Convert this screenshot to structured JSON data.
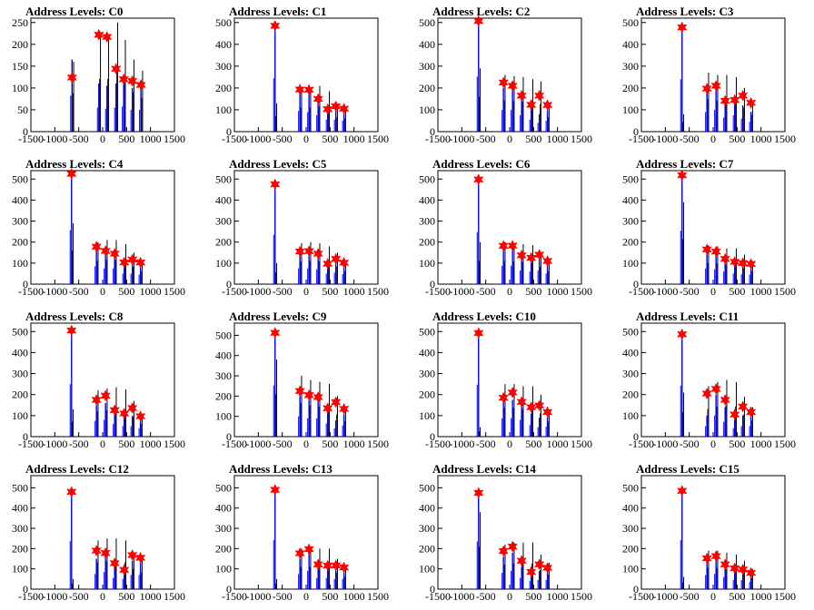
{
  "chart_data": [
    {
      "type": "line",
      "title": "Address Levels: C0",
      "xlim": [
        -1500,
        1500
      ],
      "ylim": [
        0,
        260
      ],
      "xticks": [
        "-1500",
        "-1000",
        "-500",
        "0",
        "500",
        "1000",
        "1500"
      ],
      "yticks": [
        "0",
        "50",
        "100",
        "150",
        "200",
        "250"
      ],
      "peaks": [
        {
          "x": -640,
          "black": 160,
          "blue": 165,
          "marker": 124
        },
        {
          "x": -80,
          "black": 220,
          "blue": 110,
          "marker": 222
        },
        {
          "x": 90,
          "black": 220,
          "blue": 105,
          "marker": 217
        },
        {
          "x": 280,
          "black": 250,
          "blue": 110,
          "marker": 144
        },
        {
          "x": 440,
          "black": 210,
          "blue": 115,
          "marker": 120
        },
        {
          "x": 620,
          "black": 165,
          "blue": 100,
          "marker": 116
        },
        {
          "x": 800,
          "black": 140,
          "blue": 100,
          "marker": 107
        }
      ]
    },
    {
      "type": "line",
      "title": "Address Levels: C1",
      "xlim": [
        -1500,
        1500
      ],
      "ylim": [
        0,
        520
      ],
      "xticks": [
        "-1500",
        "-1000",
        "-500",
        "0",
        "500",
        "1000",
        "1500"
      ],
      "yticks": [
        "0",
        "100",
        "200",
        "300",
        "400",
        "500"
      ],
      "peaks": [
        {
          "x": -650,
          "black": 130,
          "blue": 490,
          "marker": 485
        },
        {
          "x": -130,
          "black": 200,
          "blue": 190,
          "marker": 193
        },
        {
          "x": 60,
          "black": 200,
          "blue": 180,
          "marker": 192
        },
        {
          "x": 250,
          "black": 210,
          "blue": 150,
          "marker": 150
        },
        {
          "x": 450,
          "black": 185,
          "blue": 110,
          "marker": 103
        },
        {
          "x": 620,
          "black": 120,
          "blue": 110,
          "marker": 116
        },
        {
          "x": 790,
          "black": 110,
          "blue": 100,
          "marker": 105
        }
      ]
    },
    {
      "type": "line",
      "title": "Address Levels: C2",
      "xlim": [
        -1500,
        1500
      ],
      "ylim": [
        0,
        520
      ],
      "xticks": [
        "-1500",
        "-1000",
        "-500",
        "0",
        "500",
        "1000",
        "1500"
      ],
      "yticks": [
        "0",
        "100",
        "200",
        "300",
        "400",
        "500"
      ],
      "peaks": [
        {
          "x": -650,
          "black": 290,
          "blue": 505,
          "marker": 507
        },
        {
          "x": -130,
          "black": 260,
          "blue": 200,
          "marker": 225
        },
        {
          "x": 60,
          "black": 255,
          "blue": 200,
          "marker": 210
        },
        {
          "x": 250,
          "black": 250,
          "blue": 150,
          "marker": 165
        },
        {
          "x": 450,
          "black": 240,
          "blue": 110,
          "marker": 123
        },
        {
          "x": 620,
          "black": 230,
          "blue": 80,
          "marker": 165
        },
        {
          "x": 790,
          "black": 120,
          "blue": 100,
          "marker": 122
        }
      ]
    },
    {
      "type": "line",
      "title": "Address Levels: C3",
      "xlim": [
        -1500,
        1500
      ],
      "ylim": [
        0,
        520
      ],
      "xticks": [
        "-1500",
        "-1000",
        "-500",
        "0",
        "500",
        "1000",
        "1500"
      ],
      "yticks": [
        "0",
        "100",
        "200",
        "300",
        "400",
        "500"
      ],
      "peaks": [
        {
          "x": -650,
          "black": 80,
          "blue": 480,
          "marker": 478
        },
        {
          "x": -130,
          "black": 270,
          "blue": 180,
          "marker": 197
        },
        {
          "x": 60,
          "black": 260,
          "blue": 200,
          "marker": 210
        },
        {
          "x": 250,
          "black": 260,
          "blue": 130,
          "marker": 141
        },
        {
          "x": 450,
          "black": 250,
          "blue": 150,
          "marker": 145
        },
        {
          "x": 620,
          "black": 200,
          "blue": 120,
          "marker": 165
        },
        {
          "x": 790,
          "black": 140,
          "blue": 90,
          "marker": 132
        }
      ]
    },
    {
      "type": "line",
      "title": "Address Levels: C4",
      "xlim": [
        -1500,
        1500
      ],
      "ylim": [
        0,
        540
      ],
      "xticks": [
        "-1500",
        "-1000",
        "-500",
        "0",
        "500",
        "1000",
        "1500"
      ],
      "yticks": [
        "0",
        "100",
        "200",
        "300",
        "400",
        "500"
      ],
      "peaks": [
        {
          "x": -650,
          "black": 290,
          "blue": 515,
          "marker": 525
        },
        {
          "x": -130,
          "black": 200,
          "blue": 170,
          "marker": 178
        },
        {
          "x": 60,
          "black": 210,
          "blue": 150,
          "marker": 158
        },
        {
          "x": 250,
          "black": 210,
          "blue": 150,
          "marker": 145
        },
        {
          "x": 450,
          "black": 190,
          "blue": 100,
          "marker": 103
        },
        {
          "x": 620,
          "black": 150,
          "blue": 100,
          "marker": 117
        },
        {
          "x": 790,
          "black": 110,
          "blue": 90,
          "marker": 103
        }
      ]
    },
    {
      "type": "line",
      "title": "Address Levels: C5",
      "xlim": [
        -1500,
        1500
      ],
      "ylim": [
        0,
        540
      ],
      "xticks": [
        "-1500",
        "-1000",
        "-500",
        "0",
        "500",
        "1000",
        "1500"
      ],
      "yticks": [
        "0",
        "100",
        "200",
        "300",
        "400",
        "500"
      ],
      "peaks": [
        {
          "x": -650,
          "black": 100,
          "blue": 470,
          "marker": 475
        },
        {
          "x": -130,
          "black": 195,
          "blue": 150,
          "marker": 155
        },
        {
          "x": 60,
          "black": 200,
          "blue": 150,
          "marker": 157
        },
        {
          "x": 250,
          "black": 195,
          "blue": 140,
          "marker": 145
        },
        {
          "x": 450,
          "black": 180,
          "blue": 100,
          "marker": 97
        },
        {
          "x": 620,
          "black": 150,
          "blue": 110,
          "marker": 120
        },
        {
          "x": 790,
          "black": 110,
          "blue": 95,
          "marker": 102
        }
      ]
    },
    {
      "type": "line",
      "title": "Address Levels: C6",
      "xlim": [
        -1500,
        1500
      ],
      "ylim": [
        0,
        540
      ],
      "xticks": [
        "-1500",
        "-1000",
        "-500",
        "0",
        "500",
        "1000",
        "1500"
      ],
      "yticks": [
        "0",
        "100",
        "200",
        "300",
        "400",
        "500"
      ],
      "peaks": [
        {
          "x": -650,
          "black": 200,
          "blue": 495,
          "marker": 498
        },
        {
          "x": -130,
          "black": 200,
          "blue": 175,
          "marker": 182
        },
        {
          "x": 60,
          "black": 195,
          "blue": 175,
          "marker": 183
        },
        {
          "x": 250,
          "black": 190,
          "blue": 130,
          "marker": 137
        },
        {
          "x": 450,
          "black": 185,
          "blue": 120,
          "marker": 125
        },
        {
          "x": 620,
          "black": 150,
          "blue": 130,
          "marker": 140
        },
        {
          "x": 790,
          "black": 110,
          "blue": 100,
          "marker": 110
        }
      ]
    },
    {
      "type": "line",
      "title": "Address Levels: C7",
      "xlim": [
        -1500,
        1500
      ],
      "ylim": [
        0,
        540
      ],
      "xticks": [
        "-1500",
        "-1000",
        "-500",
        "0",
        "500",
        "1000",
        "1500"
      ],
      "yticks": [
        "0",
        "100",
        "200",
        "300",
        "400",
        "500"
      ],
      "peaks": [
        {
          "x": -650,
          "black": 390,
          "blue": 510,
          "marker": 518
        },
        {
          "x": -130,
          "black": 185,
          "blue": 150,
          "marker": 165
        },
        {
          "x": 60,
          "black": 180,
          "blue": 140,
          "marker": 155
        },
        {
          "x": 250,
          "black": 170,
          "blue": 120,
          "marker": 120
        },
        {
          "x": 450,
          "black": 170,
          "blue": 100,
          "marker": 106
        },
        {
          "x": 620,
          "black": 140,
          "blue": 95,
          "marker": 100
        },
        {
          "x": 790,
          "black": 110,
          "blue": 90,
          "marker": 96
        }
      ]
    },
    {
      "type": "line",
      "title": "Address Levels: C8",
      "xlim": [
        -1500,
        1500
      ],
      "ylim": [
        0,
        540
      ],
      "xticks": [
        "-1500",
        "-1000",
        "-500",
        "0",
        "500",
        "1000",
        "1500"
      ],
      "yticks": [
        "0",
        "100",
        "200",
        "300",
        "400",
        "500"
      ],
      "peaks": [
        {
          "x": -650,
          "black": 130,
          "blue": 500,
          "marker": 505
        },
        {
          "x": -130,
          "black": 220,
          "blue": 150,
          "marker": 175
        },
        {
          "x": 60,
          "black": 230,
          "blue": 160,
          "marker": 195
        },
        {
          "x": 250,
          "black": 235,
          "blue": 120,
          "marker": 126
        },
        {
          "x": 450,
          "black": 225,
          "blue": 100,
          "marker": 110
        },
        {
          "x": 620,
          "black": 170,
          "blue": 100,
          "marker": 136
        },
        {
          "x": 790,
          "black": 110,
          "blue": 80,
          "marker": 97
        }
      ]
    },
    {
      "type": "line",
      "title": "Address Levels: C9",
      "xlim": [
        -1500,
        1500
      ],
      "ylim": [
        0,
        560
      ],
      "xticks": [
        "-1500",
        "-1000",
        "-500",
        "0",
        "500",
        "1000",
        "1500"
      ],
      "yticks": [
        "0",
        "100",
        "200",
        "300",
        "400",
        "500"
      ],
      "peaks": [
        {
          "x": -650,
          "black": 380,
          "blue": 505,
          "marker": 512
        },
        {
          "x": -130,
          "black": 300,
          "blue": 200,
          "marker": 225
        },
        {
          "x": 60,
          "black": 280,
          "blue": 180,
          "marker": 205
        },
        {
          "x": 250,
          "black": 270,
          "blue": 180,
          "marker": 195
        },
        {
          "x": 450,
          "black": 260,
          "blue": 130,
          "marker": 140
        },
        {
          "x": 620,
          "black": 200,
          "blue": 80,
          "marker": 170
        },
        {
          "x": 790,
          "black": 140,
          "blue": 110,
          "marker": 137
        }
      ]
    },
    {
      "type": "line",
      "title": "Address Levels: C10",
      "xlim": [
        -1500,
        1500
      ],
      "ylim": [
        0,
        540
      ],
      "xticks": [
        "-1500",
        "-1000",
        "-500",
        "0",
        "500",
        "1000",
        "1500"
      ],
      "yticks": [
        "0",
        "100",
        "200",
        "300",
        "400",
        "500"
      ],
      "peaks": [
        {
          "x": -650,
          "black": 45,
          "blue": 495,
          "marker": 493
        },
        {
          "x": -130,
          "black": 250,
          "blue": 175,
          "marker": 185
        },
        {
          "x": 60,
          "black": 250,
          "blue": 175,
          "marker": 210
        },
        {
          "x": 250,
          "black": 240,
          "blue": 160,
          "marker": 165
        },
        {
          "x": 450,
          "black": 240,
          "blue": 110,
          "marker": 140
        },
        {
          "x": 620,
          "black": 200,
          "blue": 90,
          "marker": 148
        },
        {
          "x": 790,
          "black": 130,
          "blue": 95,
          "marker": 117
        }
      ]
    },
    {
      "type": "line",
      "title": "Address Levels: C11",
      "xlim": [
        -1500,
        1500
      ],
      "ylim": [
        0,
        540
      ],
      "xticks": [
        "-1500",
        "-1000",
        "-500",
        "0",
        "500",
        "1000",
        "1500"
      ],
      "yticks": [
        "0",
        "100",
        "200",
        "300",
        "400",
        "500"
      ],
      "peaks": [
        {
          "x": -650,
          "black": 210,
          "blue": 485,
          "marker": 487
        },
        {
          "x": -130,
          "black": 240,
          "blue": 100,
          "marker": 205
        },
        {
          "x": 60,
          "black": 260,
          "blue": 200,
          "marker": 227
        },
        {
          "x": 250,
          "black": 270,
          "blue": 140,
          "marker": 175
        },
        {
          "x": 450,
          "black": 260,
          "blue": 80,
          "marker": 105
        },
        {
          "x": 620,
          "black": 190,
          "blue": 100,
          "marker": 143
        },
        {
          "x": 790,
          "black": 140,
          "blue": 100,
          "marker": 117
        }
      ]
    },
    {
      "type": "line",
      "title": "Address Levels: C12",
      "xlim": [
        -1500,
        1500
      ],
      "ylim": [
        0,
        560
      ],
      "xticks": [
        "-1500",
        "-1000",
        "-500",
        "0",
        "500",
        "1000",
        "1500"
      ],
      "yticks": [
        "0",
        "100",
        "200",
        "300",
        "400",
        "500"
      ],
      "peaks": [
        {
          "x": -650,
          "black": 50,
          "blue": 475,
          "marker": 480
        },
        {
          "x": -130,
          "black": 240,
          "blue": 150,
          "marker": 190
        },
        {
          "x": 60,
          "black": 250,
          "blue": 170,
          "marker": 178
        },
        {
          "x": 250,
          "black": 250,
          "blue": 110,
          "marker": 128
        },
        {
          "x": 450,
          "black": 240,
          "blue": 100,
          "marker": 95
        },
        {
          "x": 620,
          "black": 180,
          "blue": 140,
          "marker": 168
        },
        {
          "x": 790,
          "black": 150,
          "blue": 140,
          "marker": 155
        }
      ]
    },
    {
      "type": "line",
      "title": "Address Levels: C13",
      "xlim": [
        -1500,
        1500
      ],
      "ylim": [
        0,
        560
      ],
      "xticks": [
        "-1500",
        "-1000",
        "-500",
        "0",
        "500",
        "1000",
        "1500"
      ],
      "yticks": [
        "0",
        "100",
        "200",
        "300",
        "400",
        "500"
      ],
      "peaks": [
        {
          "x": -650,
          "black": 50,
          "blue": 485,
          "marker": 490
        },
        {
          "x": -130,
          "black": 200,
          "blue": 150,
          "marker": 177
        },
        {
          "x": 60,
          "black": 200,
          "blue": 180,
          "marker": 197
        },
        {
          "x": 250,
          "black": 200,
          "blue": 110,
          "marker": 122
        },
        {
          "x": 450,
          "black": 200,
          "blue": 110,
          "marker": 116
        },
        {
          "x": 620,
          "black": 150,
          "blue": 100,
          "marker": 117
        },
        {
          "x": 790,
          "black": 110,
          "blue": 100,
          "marker": 107
        }
      ]
    },
    {
      "type": "line",
      "title": "Address Levels: C14",
      "xlim": [
        -1500,
        1500
      ],
      "ylim": [
        0,
        560
      ],
      "xticks": [
        "-1500",
        "-1000",
        "-500",
        "0",
        "500",
        "1000",
        "1500"
      ],
      "yticks": [
        "0",
        "100",
        "200",
        "300",
        "400",
        "500"
      ],
      "peaks": [
        {
          "x": -650,
          "black": 380,
          "blue": 470,
          "marker": 475
        },
        {
          "x": -130,
          "black": 220,
          "blue": 160,
          "marker": 188
        },
        {
          "x": 60,
          "black": 230,
          "blue": 180,
          "marker": 210
        },
        {
          "x": 250,
          "black": 230,
          "blue": 110,
          "marker": 140
        },
        {
          "x": 450,
          "black": 230,
          "blue": 80,
          "marker": 85
        },
        {
          "x": 620,
          "black": 170,
          "blue": 90,
          "marker": 122
        },
        {
          "x": 790,
          "black": 130,
          "blue": 90,
          "marker": 105
        }
      ]
    },
    {
      "type": "line",
      "title": "Address Levels: C15",
      "xlim": [
        -1500,
        1500
      ],
      "ylim": [
        0,
        560
      ],
      "xticks": [
        "-1500",
        "-1000",
        "-500",
        "0",
        "500",
        "1000",
        "1500"
      ],
      "yticks": [
        "0",
        "100",
        "200",
        "300",
        "400",
        "500"
      ],
      "peaks": [
        {
          "x": -650,
          "black": 60,
          "blue": 485,
          "marker": 485
        },
        {
          "x": -130,
          "black": 190,
          "blue": 140,
          "marker": 152
        },
        {
          "x": 60,
          "black": 190,
          "blue": 150,
          "marker": 163
        },
        {
          "x": 250,
          "black": 180,
          "blue": 120,
          "marker": 122
        },
        {
          "x": 450,
          "black": 170,
          "blue": 90,
          "marker": 103
        },
        {
          "x": 620,
          "black": 140,
          "blue": 90,
          "marker": 97
        },
        {
          "x": 790,
          "black": 100,
          "blue": 70,
          "marker": 80
        }
      ]
    }
  ],
  "colors": {
    "black": "#000000",
    "blue": "#0000ff",
    "marker": "#ff0000"
  }
}
